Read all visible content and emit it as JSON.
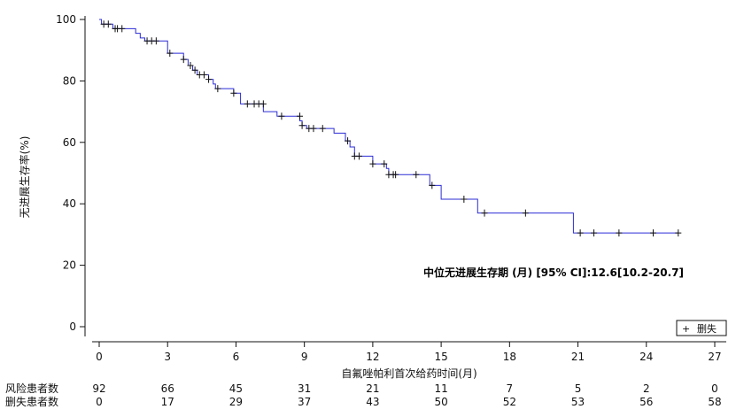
{
  "chart_data": {
    "type": "line",
    "xlabel": "自氟唑帕利首次给药时间(月)",
    "ylabel": "无进展生存率(%)",
    "xlim": [
      0,
      27
    ],
    "ylim": [
      0,
      100
    ],
    "x_ticks": [
      "0",
      "3",
      "6",
      "9",
      "12",
      "15",
      "18",
      "21",
      "24",
      "27"
    ],
    "y_ticks": [
      "0",
      "20",
      "40",
      "60",
      "80",
      "100"
    ],
    "grid": false,
    "line_color": "#2b2bd6",
    "annotation": "中位无进展生存期 (月) [95% CI]:12.6[10.2-20.7]",
    "legend": {
      "label": "删失",
      "symbol": "+",
      "position": "bottom-right"
    },
    "series": [
      {
        "step": [
          [
            0,
            100
          ],
          [
            0.1,
            98.5
          ],
          [
            0.6,
            97
          ],
          [
            1.6,
            95.5
          ],
          [
            1.8,
            94
          ],
          [
            2.0,
            93
          ],
          [
            3.0,
            89
          ],
          [
            3.7,
            87
          ],
          [
            3.9,
            85
          ],
          [
            4.1,
            83.5
          ],
          [
            4.3,
            82
          ],
          [
            4.8,
            80.5
          ],
          [
            5.0,
            79
          ],
          [
            5.1,
            77.5
          ],
          [
            5.9,
            76
          ],
          [
            6.2,
            72.5
          ],
          [
            7.2,
            70
          ],
          [
            7.8,
            68.5
          ],
          [
            8.8,
            67
          ],
          [
            8.9,
            65.5
          ],
          [
            9.1,
            64.5
          ],
          [
            10.3,
            63
          ],
          [
            10.8,
            60.5
          ],
          [
            11.0,
            58.5
          ],
          [
            11.2,
            55.5
          ],
          [
            12.0,
            53
          ],
          [
            12.6,
            51.5
          ],
          [
            12.7,
            49.5
          ],
          [
            14.5,
            46
          ],
          [
            15.0,
            41.5
          ],
          [
            16.6,
            37
          ],
          [
            20.8,
            30.5
          ],
          [
            25.4,
            30.5
          ]
        ],
        "censored": [
          [
            0.2,
            98.5
          ],
          [
            0.4,
            98.5
          ],
          [
            0.7,
            97
          ],
          [
            0.8,
            97
          ],
          [
            1.0,
            97
          ],
          [
            2.1,
            93
          ],
          [
            2.3,
            93
          ],
          [
            2.5,
            93
          ],
          [
            3.1,
            89
          ],
          [
            3.7,
            87
          ],
          [
            4.0,
            85
          ],
          [
            4.2,
            83.5
          ],
          [
            4.4,
            82
          ],
          [
            4.6,
            82
          ],
          [
            4.8,
            80.5
          ],
          [
            5.2,
            77.5
          ],
          [
            5.9,
            76
          ],
          [
            6.5,
            72.5
          ],
          [
            6.8,
            72.5
          ],
          [
            7.0,
            72.5
          ],
          [
            7.2,
            72.5
          ],
          [
            8.0,
            68.5
          ],
          [
            8.8,
            68.5
          ],
          [
            8.9,
            65.5
          ],
          [
            9.2,
            64.5
          ],
          [
            9.4,
            64.5
          ],
          [
            9.8,
            64.5
          ],
          [
            10.9,
            60.5
          ],
          [
            11.2,
            55.5
          ],
          [
            11.4,
            55.5
          ],
          [
            12.0,
            53
          ],
          [
            12.5,
            53
          ],
          [
            12.7,
            49.5
          ],
          [
            12.9,
            49.5
          ],
          [
            13.0,
            49.5
          ],
          [
            13.9,
            49.5
          ],
          [
            14.6,
            46
          ],
          [
            16.0,
            41.5
          ],
          [
            16.9,
            37
          ],
          [
            18.7,
            37
          ],
          [
            21.1,
            30.5
          ],
          [
            21.7,
            30.5
          ],
          [
            22.8,
            30.5
          ],
          [
            24.3,
            30.5
          ],
          [
            25.4,
            30.5
          ]
        ]
      }
    ],
    "risk_table": [
      {
        "label": "风险患者数",
        "values": [
          "92",
          "66",
          "45",
          "31",
          "21",
          "11",
          "7",
          "5",
          "2",
          "0"
        ]
      },
      {
        "label": "删失患者数",
        "values": [
          "0",
          "17",
          "29",
          "37",
          "43",
          "50",
          "52",
          "53",
          "56",
          "58"
        ]
      }
    ]
  }
}
